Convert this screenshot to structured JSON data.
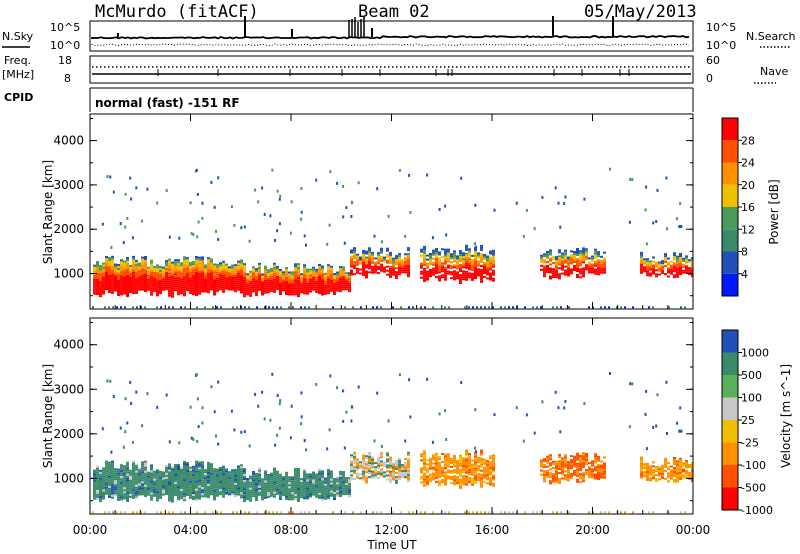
{
  "header": {
    "station": "McMurdo (fitACF)",
    "beam": "Beam 02",
    "date": "05/May/2013"
  },
  "top_panels": {
    "nsky_label": "N.Sky",
    "nsearch_label": "N.Search",
    "freq_label": "Freq.",
    "freq_unit": "[MHz]",
    "nave_label": "Nave",
    "cpid_label": "CPID",
    "cpid_text": "normal (fast) -151 RF",
    "left_ticks_noise": [
      "10^5",
      "10^0"
    ],
    "right_ticks_noise": [
      "10^5",
      "10^0"
    ],
    "left_ticks_freq": [
      "18",
      "8"
    ],
    "right_ticks_nave": [
      "60",
      "0"
    ]
  },
  "colors": {
    "power": [
      "#0018ff",
      "#2050b8",
      "#3a8b6a",
      "#4a9a5a",
      "#f0c000",
      "#ff9000",
      "#ff5000",
      "#ff0000"
    ],
    "velocity": [
      "#2050b8",
      "#3a8b6a",
      "#5ab05a",
      "#c8c8c8",
      "#f0c000",
      "#ff9000",
      "#ff5000",
      "#ff0000"
    ]
  },
  "chart_data": [
    {
      "type": "heatmap",
      "panel": "power",
      "xlabel": "",
      "ylabel": "Slant Range [km]",
      "x_ticks": [
        "00:00",
        "04:00",
        "08:00",
        "12:00",
        "16:00",
        "20:00",
        "00:00"
      ],
      "y_ticks": [
        "1000",
        "2000",
        "3000",
        "4000"
      ],
      "ylim": [
        200,
        4600
      ],
      "colorbar_label": "Power [dB]",
      "colorbar_ticks": [
        "4",
        "8",
        "12",
        "16",
        "20",
        "24",
        "28"
      ]
    },
    {
      "type": "heatmap",
      "panel": "velocity",
      "xlabel": "Time UT",
      "ylabel": "Slant Range [km]",
      "x_ticks": [
        "00:00",
        "04:00",
        "08:00",
        "12:00",
        "16:00",
        "20:00",
        "00:00"
      ],
      "y_ticks": [
        "1000",
        "2000",
        "3000",
        "4000"
      ],
      "ylim": [
        200,
        4600
      ],
      "colorbar_label": "Velocity [m s^-1]",
      "colorbar_ticks": [
        "1000",
        "500",
        "100",
        "25",
        "-25",
        "-100",
        "-500",
        "-1000"
      ]
    }
  ]
}
